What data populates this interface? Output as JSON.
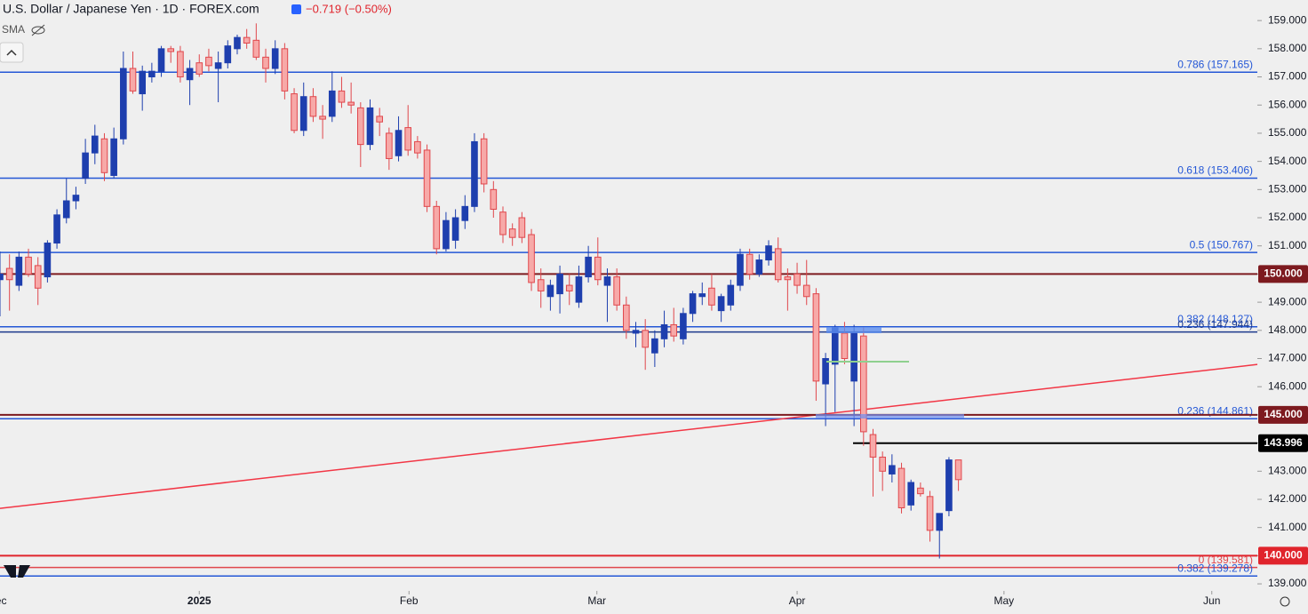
{
  "header": {
    "title": "U.S. Dollar / Japanese Yen · 1D · FOREX.com",
    "change": "−0.719 (−0.50%)",
    "indicator": "SMA"
  },
  "chart_data": {
    "type": "candlestick",
    "up_color": "#1e3fae",
    "down_color": "#f7a9a8",
    "down_border": "#e0474c",
    "xlim": [
      0,
      132.5
    ],
    "xticks": [
      {
        "value": -0.3,
        "label": "Dec"
      },
      {
        "value": 21,
        "label": "2025"
      },
      {
        "value": 43.1,
        "label": "Feb"
      },
      {
        "value": 62.9,
        "label": "Mar"
      },
      {
        "value": 84,
        "label": "Apr"
      },
      {
        "value": 105.8,
        "label": "May"
      },
      {
        "value": 127.7,
        "label": "Jun"
      }
    ],
    "ylim": [
      138.75,
      159.73
    ],
    "yticks": [
      {
        "value": 139,
        "label": "139.000"
      },
      {
        "value": 140,
        "label": "140.000"
      },
      {
        "value": 141,
        "label": "141.000"
      },
      {
        "value": 142,
        "label": "142.000"
      },
      {
        "value": 143,
        "label": "143.000"
      },
      {
        "value": 144,
        "label": "144.000"
      },
      {
        "value": 145,
        "label": "145.000"
      },
      {
        "value": 146,
        "label": "146.000"
      },
      {
        "value": 147,
        "label": "147.000"
      },
      {
        "value": 148,
        "label": "148.000"
      },
      {
        "value": 149,
        "label": "149.000"
      },
      {
        "value": 150,
        "label": "150.000"
      },
      {
        "value": 151,
        "label": "151.000"
      },
      {
        "value": 152,
        "label": "152.000"
      },
      {
        "value": 153,
        "label": "153.000"
      },
      {
        "value": 154,
        "label": "154.000"
      },
      {
        "value": 155,
        "label": "155.000"
      },
      {
        "value": 156,
        "label": "156.000"
      },
      {
        "value": 157,
        "label": "157.000"
      },
      {
        "value": 158,
        "label": "158.000"
      },
      {
        "value": 159,
        "label": "159.000"
      }
    ],
    "open": [
      149.8,
      150.2,
      149.6,
      150.6,
      150.3,
      149.9,
      151.1,
      152.0,
      152.6,
      153.4,
      154.3,
      154.8,
      153.5,
      154.8,
      157.3,
      156.4,
      157.0,
      157.2,
      158.0,
      157.9,
      156.9,
      157.5,
      157.7,
      157.3,
      157.5,
      158.0,
      158.4,
      158.3,
      157.7,
      157.3,
      158.0,
      156.4,
      155.1,
      156.3,
      155.6,
      155.6,
      156.5,
      156.1,
      155.9,
      154.6,
      155.6,
      155.0,
      154.2,
      155.2,
      154.7,
      154.4,
      152.4,
      150.9,
      151.2,
      151.9,
      152.4,
      154.8,
      153.0,
      152.2,
      151.6,
      152.0,
      151.4,
      149.8,
      149.2,
      149.3,
      149.6,
      149.0,
      149.9,
      150.6,
      149.6,
      149.9,
      148.9,
      147.9,
      148.0,
      147.2,
      147.7,
      148.2,
      147.7,
      148.6,
      149.2,
      149.5,
      148.7,
      148.9,
      149.6,
      150.7,
      150.0,
      150.5,
      150.9,
      149.9,
      150.0,
      149.6,
      149.3,
      146.1,
      146.8,
      147.9,
      146.2,
      147.8,
      144.3,
      143.5,
      142.9,
      143.1,
      141.8,
      142.4,
      142.1,
      140.9,
      141.6,
      143.4
    ],
    "high": [
      150.8,
      150.7,
      150.8,
      150.9,
      150.6,
      151.2,
      152.3,
      153.4,
      153.1,
      154.8,
      155.3,
      155.0,
      155.2,
      157.9,
      157.9,
      157.4,
      157.5,
      158.1,
      158.1,
      158.1,
      157.6,
      157.8,
      158.0,
      157.9,
      158.3,
      158.5,
      158.7,
      158.9,
      158.0,
      158.3,
      158.2,
      156.6,
      156.8,
      156.6,
      156.0,
      157.2,
      157.0,
      156.8,
      156.1,
      156.2,
      155.9,
      155.2,
      155.6,
      156.0,
      154.9,
      154.6,
      152.6,
      152.2,
      152.3,
      152.8,
      155.0,
      155.0,
      153.3,
      152.4,
      151.8,
      152.2,
      151.6,
      150.2,
      149.8,
      150.3,
      150.0,
      150.3,
      151.0,
      151.3,
      150.2,
      150.2,
      149.2,
      148.3,
      148.4,
      148.0,
      148.7,
      148.8,
      148.8,
      149.4,
      149.7,
      150.0,
      149.3,
      149.8,
      150.9,
      150.9,
      150.7,
      151.2,
      151.3,
      150.2,
      150.4,
      150.5,
      149.5,
      147.2,
      148.2,
      148.3,
      148.2,
      148.1,
      144.5,
      143.7,
      143.6,
      143.3,
      142.7,
      142.6,
      142.3,
      141.5,
      143.5,
      143.4
    ],
    "low": [
      148.5,
      148.7,
      149.4,
      149.9,
      148.9,
      149.7,
      150.9,
      151.8,
      152.3,
      153.2,
      153.9,
      153.3,
      153.4,
      154.6,
      156.4,
      155.8,
      156.8,
      157.0,
      157.5,
      156.8,
      156.0,
      157.0,
      157.2,
      156.1,
      157.3,
      157.8,
      158.0,
      157.6,
      156.8,
      157.1,
      156.2,
      155.0,
      154.9,
      155.4,
      154.8,
      155.4,
      155.9,
      155.7,
      153.8,
      154.4,
      154.9,
      153.7,
      154.0,
      154.2,
      154.1,
      152.2,
      150.7,
      150.8,
      150.9,
      151.6,
      152.2,
      152.9,
      152.0,
      151.1,
      151.0,
      151.1,
      149.4,
      148.8,
      148.7,
      148.6,
      148.9,
      148.8,
      149.7,
      149.6,
      148.3,
      148.7,
      147.7,
      147.4,
      146.6,
      146.7,
      147.4,
      147.6,
      147.5,
      148.3,
      148.9,
      148.7,
      148.3,
      148.7,
      149.4,
      149.8,
      149.9,
      150.3,
      149.7,
      148.7,
      149.3,
      148.9,
      145.5,
      144.6,
      145.1,
      146.8,
      144.6,
      143.9,
      142.1,
      142.3,
      142.6,
      141.5,
      141.6,
      142.1,
      140.5,
      139.9,
      141.4,
      142.3
    ],
    "close": [
      150.0,
      149.8,
      150.6,
      150.0,
      149.5,
      151.1,
      152.1,
      152.6,
      152.8,
      154.3,
      154.9,
      153.6,
      154.8,
      157.3,
      156.5,
      157.2,
      157.2,
      158.0,
      157.9,
      157.0,
      157.3,
      157.1,
      157.4,
      157.5,
      158.1,
      158.4,
      158.2,
      157.7,
      157.3,
      158.0,
      156.5,
      155.1,
      156.3,
      155.6,
      155.5,
      156.5,
      156.1,
      156.0,
      154.6,
      155.9,
      155.4,
      154.1,
      155.1,
      154.4,
      154.3,
      152.4,
      150.9,
      151.9,
      152.0,
      152.4,
      154.7,
      153.2,
      152.3,
      151.4,
      151.3,
      151.3,
      149.7,
      149.4,
      149.6,
      150.0,
      149.4,
      149.9,
      150.6,
      149.8,
      149.9,
      148.9,
      148.0,
      148.0,
      147.4,
      147.7,
      148.2,
      147.8,
      148.6,
      149.3,
      149.3,
      148.9,
      149.2,
      149.6,
      150.7,
      150.0,
      150.5,
      151.0,
      149.8,
      149.8,
      149.6,
      149.2,
      146.2,
      147.0,
      148.1,
      147.0,
      147.9,
      144.4,
      143.5,
      143.0,
      143.2,
      141.7,
      142.6,
      142.2,
      140.9,
      141.5,
      143.4,
      142.7
    ],
    "levels": [
      {
        "value": 157.165,
        "label": "0.786 (157.165)",
        "color": "#2457d6"
      },
      {
        "value": 153.406,
        "label": "0.618 (153.406)",
        "color": "#2457d6"
      },
      {
        "value": 150.767,
        "label": "0.5 (150.767)",
        "color": "#2457d6"
      },
      {
        "value": 148.127,
        "label": "0.382 (148.127)",
        "color": "#2457d6"
      },
      {
        "value": 147.944,
        "label": "0.236 (147.944)",
        "color": "#1c3a8c"
      },
      {
        "value": 144.861,
        "label": "0.236 (144.861)",
        "color": "#2457d6"
      },
      {
        "value": 139.581,
        "label": "0 (139.581)",
        "color": "#e0474c"
      },
      {
        "value": 139.278,
        "label": "0.382 (139.278)",
        "color": "#2457d6"
      }
    ],
    "price_lines": [
      {
        "value": 150,
        "label": "150.000",
        "color": "#7d1a1f"
      },
      {
        "value": 145,
        "label": "145.000",
        "color": "#7d1a1f"
      },
      {
        "value": 143.996,
        "label": "143.996",
        "color": "#000000"
      },
      {
        "value": 140,
        "label": "140.000",
        "color": "#e0242c"
      }
    ],
    "trendline": {
      "values": [
        141.68,
        146.79
      ],
      "color": "#f23645"
    }
  }
}
